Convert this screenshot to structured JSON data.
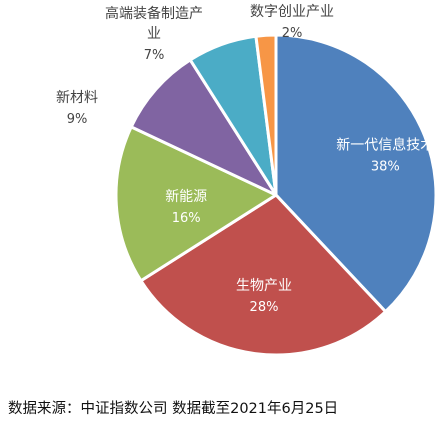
{
  "chart_data": {
    "type": "pie",
    "slices": [
      {
        "label": "新一代信息技术",
        "value": 38,
        "value_label": "38%",
        "color": "#4F81BD"
      },
      {
        "label": "生物产业",
        "value": 28,
        "value_label": "28%",
        "color": "#C0504D"
      },
      {
        "label": "新能源",
        "value": 16,
        "value_label": "16%",
        "color": "#9BBB59"
      },
      {
        "label": "新材料",
        "value": 9,
        "value_label": "9%",
        "color": "#8064A2"
      },
      {
        "label": "高端装备制造产业",
        "value": 7,
        "value_label": "7%",
        "color": "#4BACC6"
      },
      {
        "label": "数字创业产业",
        "value": 2,
        "value_label": "2%",
        "color": "#F79646"
      }
    ]
  },
  "source": "数据来源：中证指数公司 数据截至2021年6月25日"
}
